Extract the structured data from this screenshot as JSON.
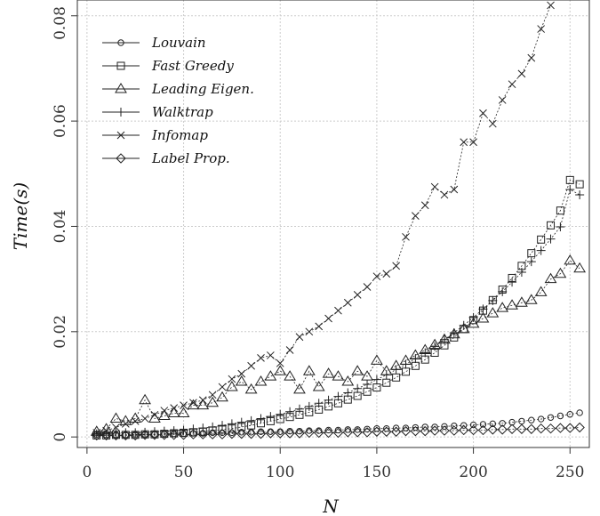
{
  "chart_data": {
    "type": "line",
    "xlabel": "N",
    "ylabel": "Time(s)",
    "xlim": [
      -5,
      260
    ],
    "ylim": [
      -0.002,
      0.083
    ],
    "xticks": [
      0,
      50,
      100,
      150,
      200,
      250
    ],
    "yticks": [
      0,
      0.02,
      0.04,
      0.06,
      0.08
    ],
    "xtick_labels": [
      "0",
      "50",
      "100",
      "150",
      "200",
      "250"
    ],
    "ytick_labels": [
      "0",
      "0.02",
      "0.04",
      "0.06",
      "0.08"
    ],
    "grid": true,
    "legend_position": "top-left",
    "series": [
      {
        "name": "Louvain",
        "marker": "circle",
        "x": [
          5,
          10,
          15,
          20,
          25,
          30,
          35,
          40,
          45,
          50,
          55,
          60,
          65,
          70,
          75,
          80,
          85,
          90,
          95,
          100,
          105,
          110,
          115,
          120,
          125,
          130,
          135,
          140,
          145,
          150,
          155,
          160,
          165,
          170,
          175,
          180,
          185,
          190,
          195,
          200,
          205,
          210,
          215,
          220,
          225,
          230,
          235,
          240,
          245,
          250,
          255
        ],
        "y": [
          0.0005,
          0.0004,
          0.0004,
          0.0004,
          0.0005,
          0.0005,
          0.0005,
          0.0006,
          0.0006,
          0.0006,
          0.0007,
          0.0007,
          0.0008,
          0.0008,
          0.0008,
          0.0009,
          0.0009,
          0.001,
          0.001,
          0.001,
          0.0011,
          0.0011,
          0.0012,
          0.0012,
          0.0013,
          0.0013,
          0.0014,
          0.0014,
          0.0015,
          0.0016,
          0.0016,
          0.0017,
          0.0017,
          0.0018,
          0.0019,
          0.0019,
          0.002,
          0.0021,
          0.0022,
          0.0023,
          0.0024,
          0.0025,
          0.0026,
          0.0028,
          0.003,
          0.0032,
          0.0034,
          0.0037,
          0.004,
          0.0043,
          0.0046
        ]
      },
      {
        "name": "Fast Greedy",
        "marker": "square",
        "x": [
          5,
          10,
          15,
          20,
          25,
          30,
          35,
          40,
          45,
          50,
          55,
          60,
          65,
          70,
          75,
          80,
          85,
          90,
          95,
          100,
          105,
          110,
          115,
          120,
          125,
          130,
          135,
          140,
          145,
          150,
          155,
          160,
          165,
          170,
          175,
          180,
          185,
          190,
          195,
          200,
          205,
          210,
          215,
          220,
          225,
          230,
          235,
          240,
          245,
          250,
          255
        ],
        "y": [
          0.0003,
          0.0003,
          0.0004,
          0.0004,
          0.0004,
          0.0005,
          0.0005,
          0.0006,
          0.0007,
          0.0008,
          0.0009,
          0.001,
          0.0012,
          0.0014,
          0.0016,
          0.0019,
          0.0022,
          0.0026,
          0.003,
          0.0034,
          0.0038,
          0.0042,
          0.0047,
          0.0052,
          0.0058,
          0.0064,
          0.0071,
          0.0078,
          0.0086,
          0.0094,
          0.0103,
          0.0113,
          0.0124,
          0.0135,
          0.0147,
          0.016,
          0.0174,
          0.0189,
          0.0205,
          0.0222,
          0.024,
          0.026,
          0.028,
          0.0302,
          0.0325,
          0.0349,
          0.0375,
          0.0402,
          0.043,
          0.0488,
          0.048
        ]
      },
      {
        "name": "Leading Eigen.",
        "marker": "triangle",
        "x": [
          5,
          10,
          15,
          20,
          25,
          30,
          35,
          40,
          45,
          50,
          55,
          60,
          65,
          70,
          75,
          80,
          85,
          90,
          95,
          100,
          105,
          110,
          115,
          120,
          125,
          130,
          135,
          140,
          145,
          150,
          155,
          160,
          165,
          170,
          175,
          180,
          185,
          190,
          195,
          200,
          205,
          210,
          215,
          220,
          225,
          230,
          235,
          240,
          245,
          250,
          255
        ],
        "y": [
          0.001,
          0.0015,
          0.0035,
          0.003,
          0.0035,
          0.007,
          0.0035,
          0.004,
          0.0045,
          0.0045,
          0.006,
          0.006,
          0.0065,
          0.0075,
          0.0095,
          0.0105,
          0.009,
          0.0105,
          0.0115,
          0.0125,
          0.0115,
          0.009,
          0.0125,
          0.0095,
          0.012,
          0.0115,
          0.0105,
          0.0125,
          0.0115,
          0.0145,
          0.0125,
          0.0135,
          0.0145,
          0.0155,
          0.0165,
          0.0175,
          0.0185,
          0.0195,
          0.0205,
          0.0215,
          0.0225,
          0.0235,
          0.0245,
          0.025,
          0.0255,
          0.026,
          0.0275,
          0.03,
          0.031,
          0.0335,
          0.032
        ]
      },
      {
        "name": "Walktrap",
        "marker": "plus",
        "x": [
          5,
          10,
          15,
          20,
          25,
          30,
          35,
          40,
          45,
          50,
          55,
          60,
          65,
          70,
          75,
          80,
          85,
          90,
          95,
          100,
          105,
          110,
          115,
          120,
          125,
          130,
          135,
          140,
          145,
          150,
          155,
          160,
          165,
          170,
          175,
          180,
          185,
          190,
          195,
          200,
          205,
          210,
          215,
          220,
          225,
          230,
          235,
          240,
          245,
          250,
          255
        ],
        "y": [
          0.0006,
          0.0006,
          0.0007,
          0.0008,
          0.0008,
          0.0009,
          0.001,
          0.0011,
          0.0012,
          0.0013,
          0.0015,
          0.0017,
          0.0019,
          0.0022,
          0.0025,
          0.0028,
          0.0031,
          0.0035,
          0.0039,
          0.0043,
          0.0048,
          0.0053,
          0.0058,
          0.0064,
          0.007,
          0.0077,
          0.0084,
          0.0092,
          0.01,
          0.0109,
          0.0118,
          0.0128,
          0.0138,
          0.0149,
          0.016,
          0.0172,
          0.0185,
          0.0198,
          0.0212,
          0.0227,
          0.0243,
          0.0259,
          0.0276,
          0.0294,
          0.0313,
          0.0333,
          0.0354,
          0.0376,
          0.0399,
          0.047,
          0.046
        ]
      },
      {
        "name": "Infomap",
        "marker": "cross",
        "x": [
          5,
          10,
          15,
          20,
          25,
          30,
          35,
          40,
          45,
          50,
          55,
          60,
          65,
          70,
          75,
          80,
          85,
          90,
          95,
          100,
          105,
          110,
          115,
          120,
          125,
          130,
          135,
          140,
          145,
          150,
          155,
          160,
          165,
          170,
          175,
          180,
          185,
          190,
          195,
          200,
          205,
          210,
          215,
          220,
          225,
          230,
          235,
          240
        ],
        "y": [
          0.0008,
          0.0012,
          0.0018,
          0.0025,
          0.003,
          0.0035,
          0.0042,
          0.005,
          0.0055,
          0.006,
          0.0065,
          0.007,
          0.008,
          0.0095,
          0.011,
          0.012,
          0.0135,
          0.015,
          0.0155,
          0.014,
          0.0165,
          0.019,
          0.02,
          0.021,
          0.0225,
          0.024,
          0.0255,
          0.027,
          0.0285,
          0.0305,
          0.031,
          0.0325,
          0.038,
          0.042,
          0.044,
          0.0475,
          0.046,
          0.047,
          0.056,
          0.056,
          0.0615,
          0.0595,
          0.064,
          0.067,
          0.069,
          0.072,
          0.0775,
          0.082
        ]
      },
      {
        "name": "Label Prop.",
        "marker": "diamond",
        "x": [
          5,
          10,
          15,
          20,
          25,
          30,
          35,
          40,
          45,
          50,
          55,
          60,
          65,
          70,
          75,
          80,
          85,
          90,
          95,
          100,
          105,
          110,
          115,
          120,
          125,
          130,
          135,
          140,
          145,
          150,
          155,
          160,
          165,
          170,
          175,
          180,
          185,
          190,
          195,
          200,
          205,
          210,
          215,
          220,
          225,
          230,
          235,
          240,
          245,
          250,
          255
        ],
        "y": [
          0.0003,
          0.0003,
          0.0003,
          0.0003,
          0.0003,
          0.0004,
          0.0004,
          0.0004,
          0.0004,
          0.0004,
          0.0005,
          0.0005,
          0.0005,
          0.0005,
          0.0006,
          0.0006,
          0.0006,
          0.0006,
          0.0007,
          0.0007,
          0.0007,
          0.0007,
          0.0008,
          0.0008,
          0.0008,
          0.0008,
          0.0009,
          0.0009,
          0.0009,
          0.001,
          0.001,
          0.001,
          0.0011,
          0.0011,
          0.0011,
          0.0012,
          0.0012,
          0.0012,
          0.0013,
          0.0013,
          0.0013,
          0.0014,
          0.0014,
          0.0015,
          0.0015,
          0.0015,
          0.0016,
          0.0016,
          0.0017,
          0.0017,
          0.0018
        ]
      }
    ]
  }
}
